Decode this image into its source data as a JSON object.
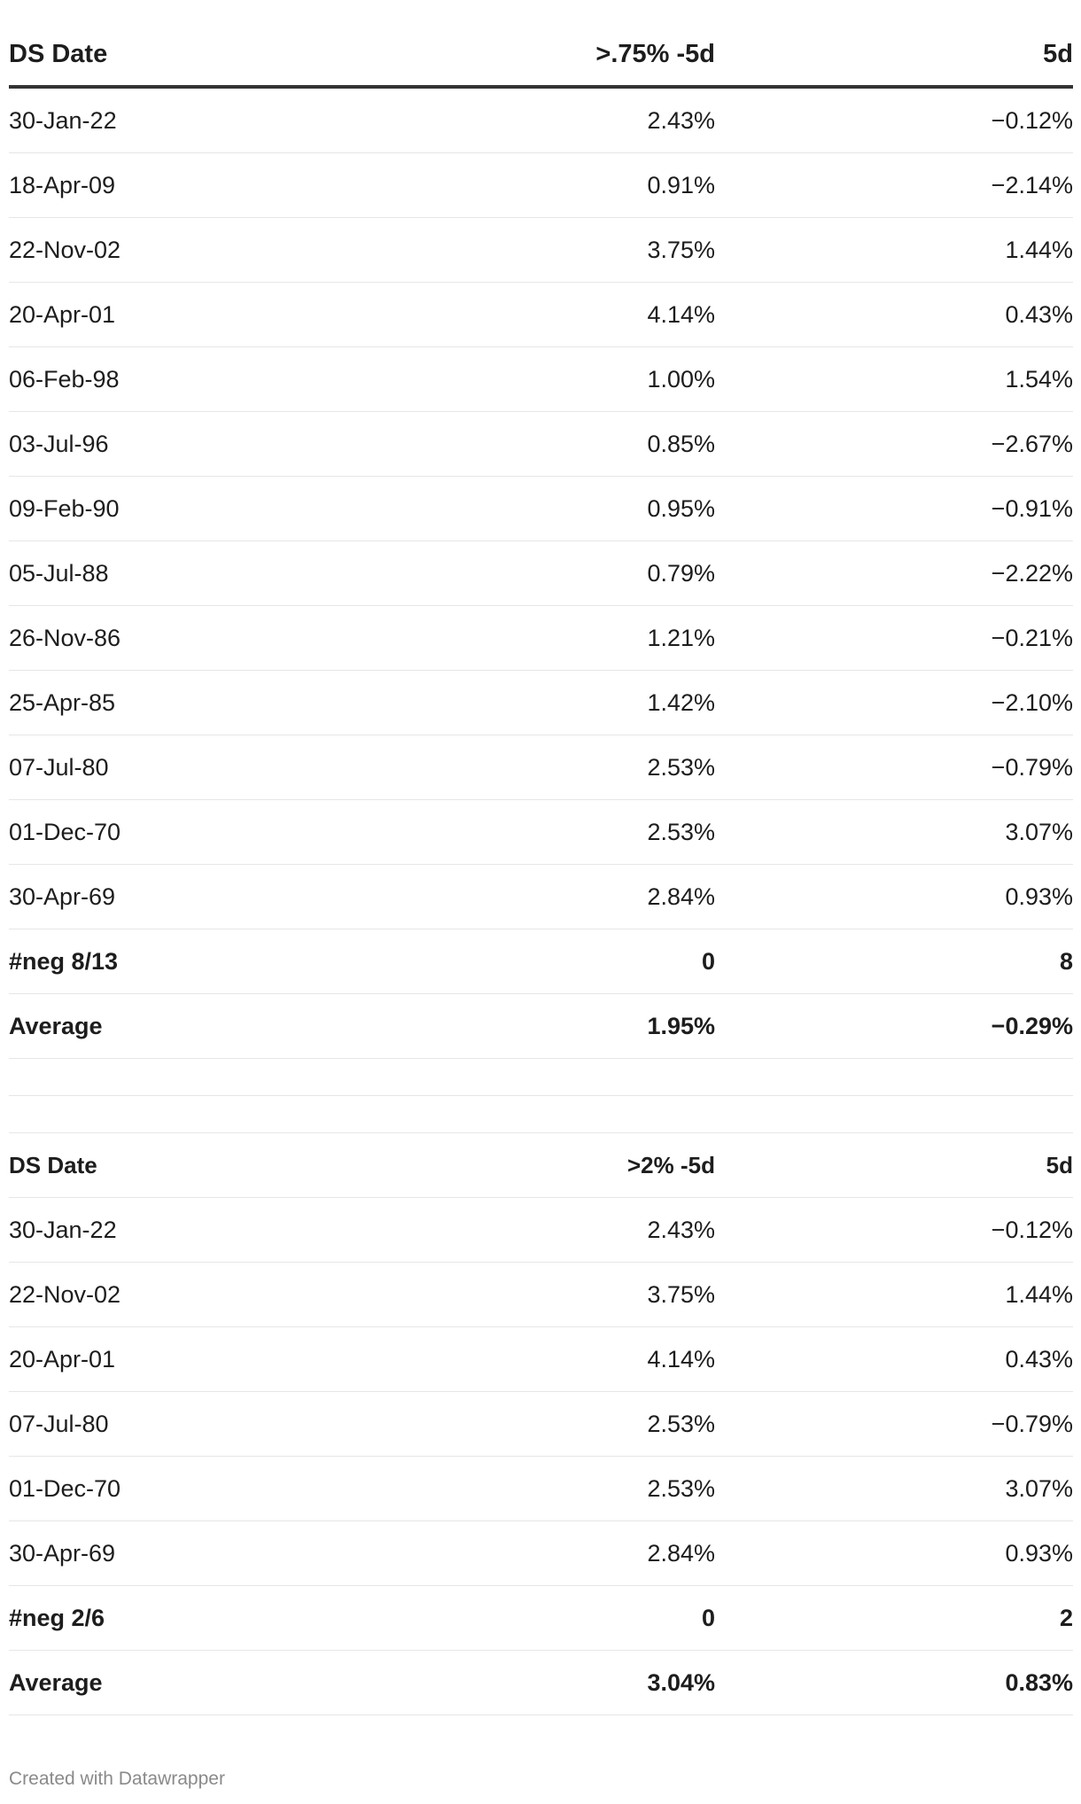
{
  "chart_data": [
    {
      "type": "table",
      "columns": [
        "DS Date",
        ">.75% -5d",
        "5d"
      ],
      "rows": [
        [
          "30-Jan-22",
          "2.43%",
          "−0.12%"
        ],
        [
          "18-Apr-09",
          "0.91%",
          "−2.14%"
        ],
        [
          "22-Nov-02",
          "3.75%",
          "1.44%"
        ],
        [
          "20-Apr-01",
          "4.14%",
          "0.43%"
        ],
        [
          "06-Feb-98",
          "1.00%",
          "1.54%"
        ],
        [
          "03-Jul-96",
          "0.85%",
          "−2.67%"
        ],
        [
          "09-Feb-90",
          "0.95%",
          "−0.91%"
        ],
        [
          "05-Jul-88",
          "0.79%",
          "−2.22%"
        ],
        [
          "26-Nov-86",
          "1.21%",
          "−0.21%"
        ],
        [
          "25-Apr-85",
          "1.42%",
          "−2.10%"
        ],
        [
          "07-Jul-80",
          "2.53%",
          "−0.79%"
        ],
        [
          "01-Dec-70",
          "2.53%",
          "3.07%"
        ],
        [
          "30-Apr-69",
          "2.84%",
          "0.93%"
        ]
      ],
      "summary": [
        [
          "#neg 8/13",
          "0",
          "8"
        ],
        [
          "Average",
          "1.95%",
          "−0.29%"
        ]
      ]
    },
    {
      "type": "table",
      "columns": [
        "DS Date",
        ">2% -5d",
        "5d"
      ],
      "rows": [
        [
          "30-Jan-22",
          "2.43%",
          "−0.12%"
        ],
        [
          "22-Nov-02",
          "3.75%",
          "1.44%"
        ],
        [
          "20-Apr-01",
          "4.14%",
          "0.43%"
        ],
        [
          "07-Jul-80",
          "2.53%",
          "−0.79%"
        ],
        [
          "01-Dec-70",
          "2.53%",
          "3.07%"
        ],
        [
          "30-Apr-69",
          "2.84%",
          "0.93%"
        ]
      ],
      "summary": [
        [
          "#neg 2/6",
          "0",
          "2"
        ],
        [
          "Average",
          "3.04%",
          "0.83%"
        ]
      ]
    }
  ],
  "footer": "Created with Datawrapper"
}
